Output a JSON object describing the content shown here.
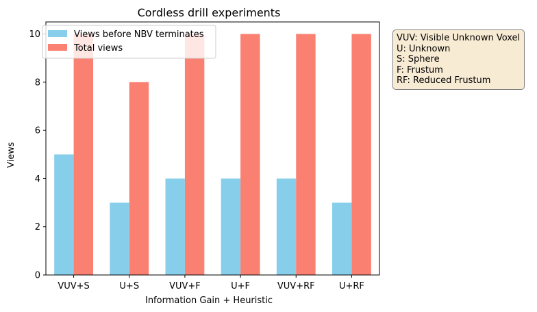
{
  "chart_data": {
    "type": "bar",
    "title": "Cordless drill experiments",
    "xlabel": "Information Gain + Heuristic",
    "ylabel": "Views",
    "categories": [
      "VUV+S",
      "U+S",
      "VUV+F",
      "U+F",
      "VUV+RF",
      "U+RF"
    ],
    "series": [
      {
        "name": "Views before NBV terminates",
        "values": [
          5,
          3,
          4,
          4,
          4,
          3
        ],
        "color": "#87ceeb"
      },
      {
        "name": "Total views",
        "values": [
          10,
          8,
          10,
          10,
          10,
          10
        ],
        "color": "#fa8072"
      }
    ],
    "ylim": [
      0,
      10.5
    ],
    "yticks": [
      0,
      2,
      4,
      6,
      8,
      10
    ],
    "grid": false,
    "legend_position": "upper left"
  },
  "annotation": {
    "lines": [
      "VUV: Visible Unknown Voxel",
      "U: Unknown",
      "S: Sphere",
      "F: Frustum",
      "RF: Reduced Frustum"
    ],
    "background": "#f8ebd4"
  }
}
